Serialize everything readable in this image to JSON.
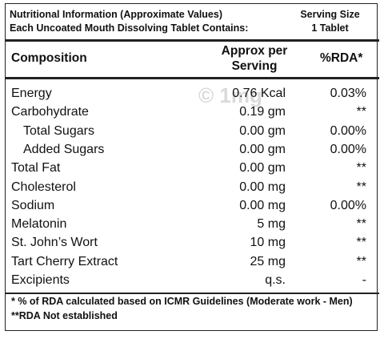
{
  "header": {
    "title_lines": [
      "Nutritional Information (Approximate Values)",
      "Each Uncoated Mouth Dissolving Tablet Contains:"
    ],
    "serving_size_lines": [
      "Serving Size",
      "1 Tablet"
    ]
  },
  "table": {
    "columns": [
      "Composition",
      "Approx per Serving",
      "%RDA*"
    ],
    "rows": [
      [
        "Energy",
        "0.76 Kcal",
        "0.03%"
      ],
      [
        "Carbohydrate",
        "0.19 gm",
        "**"
      ],
      [
        "Total Sugars",
        "0.00 gm",
        "0.00%"
      ],
      [
        "Added Sugars",
        "0.00 gm",
        "0.00%"
      ],
      [
        "Total Fat",
        "0.00 gm",
        "**"
      ],
      [
        "Cholesterol",
        "0.00 mg",
        "**"
      ],
      [
        "Sodium",
        "0.00 mg",
        "0.00%"
      ],
      [
        "Melatonin",
        "5 mg",
        "**"
      ],
      [
        "St. John’s Wort",
        "10 mg",
        "**"
      ],
      [
        "Tart Cherry Extract",
        "25 mg",
        "**"
      ],
      [
        "Excipients",
        "q.s.",
        "-"
      ]
    ]
  },
  "footnotes": [
    "* % of RDA calculated based on ICMR Guidelines (Moderate work - Men)",
    "**RDA Not established"
  ],
  "watermark": "© 1mg"
}
